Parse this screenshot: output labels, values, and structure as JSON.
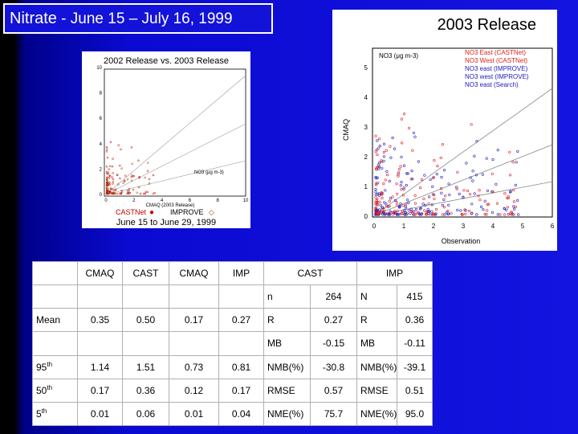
{
  "title": {
    "species": "Nitrate",
    "dash": " - ",
    "period": "June 15 –  July 16, 1999"
  },
  "right_panel": {
    "title": "2003 Release",
    "unit_label": "NO3 (μg m-3)",
    "y_axis_label": "CMAQ",
    "x_axis_label": "Observation",
    "x_ticks": [
      "0",
      "1",
      "2",
      "3",
      "4",
      "5",
      "6"
    ],
    "y_ticks": [
      "0",
      "1",
      "2",
      "3",
      "4",
      "5"
    ],
    "legend": [
      {
        "label": "NO3 East (CASTNet)",
        "color": "#e02020"
      },
      {
        "label": "NO3 West (CASTNet)",
        "color": "#e02020"
      },
      {
        "label": "NO3 east (IMPROVE)",
        "color": "#2020c0"
      },
      {
        "label": "NO3 west (IMPROVE)",
        "color": "#2020c0"
      },
      {
        "label": "NO3 east (Search)",
        "color": "#2020c0"
      }
    ]
  },
  "left_panel": {
    "title": "2002 Release vs. 2003 Release",
    "x_axis_label": "CMAQ (2003 Release)",
    "unit_label": "NO3 (μg m-3)",
    "x_ticks": [
      "0",
      "2",
      "4",
      "6",
      "8",
      "10"
    ],
    "y_ticks": [
      "0",
      "2",
      "4",
      "6",
      "8",
      "10"
    ],
    "legend_castnet": "CASTNet",
    "legend_improve": "IMPROVE",
    "date_range": "June 15  to  June 29,  1999"
  },
  "table": {
    "headers": [
      "",
      "CMAQ",
      "CAST",
      "CMAQ",
      "IMP",
      "CAST",
      "IMP"
    ],
    "rows": [
      {
        "label": "",
        "vals": [
          "",
          "",
          "",
          ""
        ],
        "a_name": "n",
        "a_val": "264",
        "b_name": "N",
        "b_val": "415"
      },
      {
        "label": "Mean",
        "vals": [
          "0.35",
          "0.50",
          "0.17",
          "0.27"
        ],
        "a_name": "R",
        "a_val": "0.27",
        "b_name": "R",
        "b_val": "0.36"
      },
      {
        "label": "",
        "vals": [
          "",
          "",
          "",
          ""
        ],
        "a_name": "MB",
        "a_val": "-0.15",
        "b_name": "MB",
        "b_val": "-0.11"
      },
      {
        "label": "95",
        "sup": "th",
        "vals": [
          "1.14",
          "1.51",
          "0.73",
          "0.81"
        ],
        "a_name": "NMB(%)",
        "a_val": "-30.8",
        "b_name": "NMB(%)",
        "b_val": "-39.1"
      },
      {
        "label": "50",
        "sup": "th",
        "vals": [
          "0.17",
          "0.36",
          "0.12",
          "0.17"
        ],
        "a_name": "RMSE",
        "a_val": "0.57",
        "b_name": "RMSE",
        "b_val": "0.51"
      },
      {
        "label": "5",
        "sup": "th",
        "vals": [
          "0.01",
          "0.06",
          "0.01",
          "0.04"
        ],
        "a_name": "NME(%)",
        "a_val": "75.7",
        "b_name": "NME(%)",
        "b_val": "95.0"
      }
    ]
  }
}
